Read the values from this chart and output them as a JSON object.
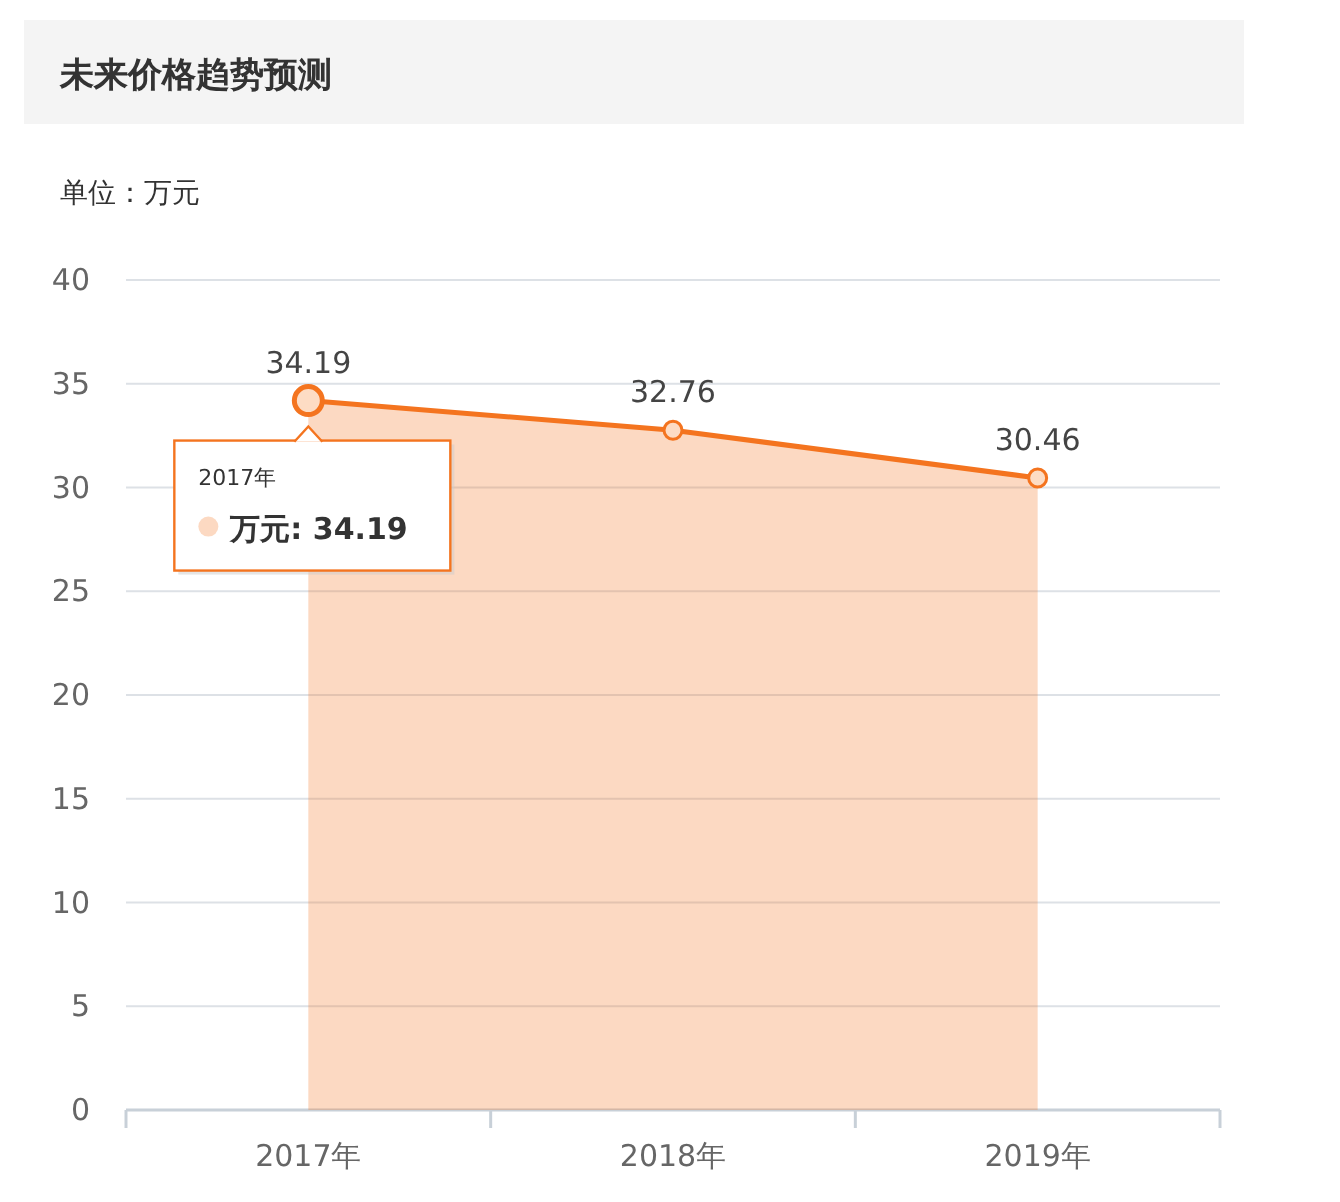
{
  "chart_data": {
    "type": "area",
    "title": "未来价格趋势预测",
    "subtitle": "单位：万元",
    "categories": [
      "2017年",
      "2018年",
      "2019年"
    ],
    "values": [
      34.19,
      32.76,
      30.46
    ],
    "color": "#f4741f",
    "ylim": [
      0,
      40
    ],
    "yticks": [
      0,
      5,
      10,
      15,
      20,
      25,
      30,
      35,
      40
    ],
    "grid": "y",
    "marker": "circle",
    "data_labels": true,
    "annotations": [
      "2017年",
      "万元: 34.19"
    ]
  }
}
